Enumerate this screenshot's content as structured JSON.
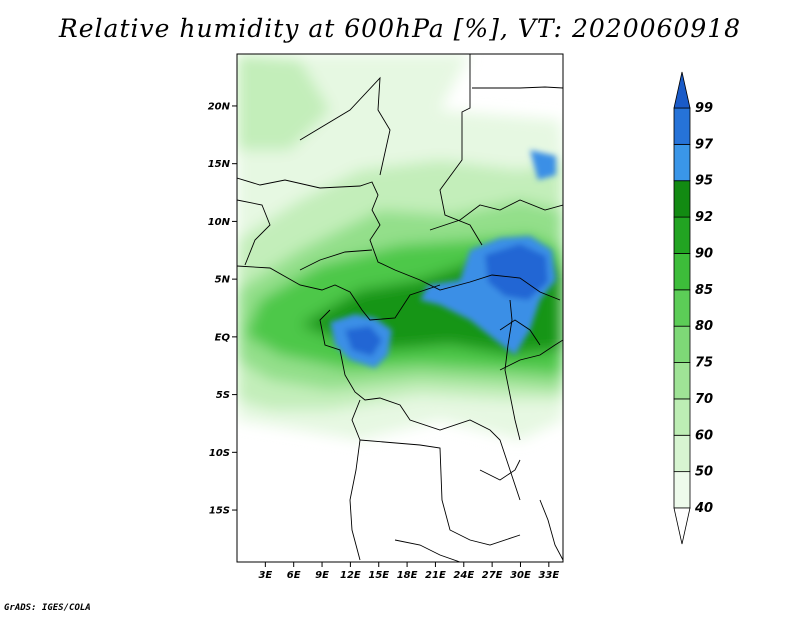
{
  "title": "Relative humidity at 600hPa [%], VT: 2020060918",
  "credit": "GrADS: IGES/COLA",
  "map": {
    "lat_labels": [
      "20N",
      "15N",
      "10N",
      "5N",
      "EQ",
      "5S",
      "10S",
      "15S"
    ],
    "lat_values": [
      20,
      15,
      10,
      5,
      0,
      -5,
      -10,
      -15
    ],
    "lon_labels": [
      "3E",
      "6E",
      "9E",
      "12E",
      "15E",
      "18E",
      "21E",
      "24E",
      "27E",
      "30E",
      "33E"
    ],
    "lon_values": [
      3,
      6,
      9,
      12,
      15,
      18,
      21,
      24,
      27,
      30,
      33
    ],
    "lat_range": [
      -19.5,
      24.5
    ],
    "lon_range": [
      0,
      34.5
    ]
  },
  "colorbar": {
    "labels": [
      "40",
      "50",
      "60",
      "70",
      "75",
      "80",
      "85",
      "90",
      "92",
      "95",
      "97",
      "99"
    ],
    "bins": [
      {
        "color": "#eefbec"
      },
      {
        "color": "#d7f5d1"
      },
      {
        "color": "#bdedb4"
      },
      {
        "color": "#9fe396"
      },
      {
        "color": "#7ed977"
      },
      {
        "color": "#5ccd57"
      },
      {
        "color": "#3dbd3a"
      },
      {
        "color": "#22a422"
      },
      {
        "color": "#128a12"
      },
      {
        "color": "#3a96e8"
      },
      {
        "color": "#2673d8"
      },
      {
        "color": "#1a5bc8"
      }
    ]
  }
}
